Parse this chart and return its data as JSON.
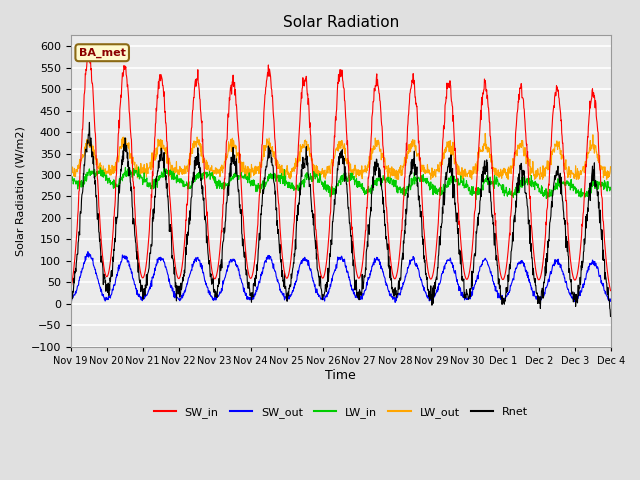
{
  "title": "Solar Radiation",
  "xlabel": "Time",
  "ylabel": "Solar Radiation (W/m2)",
  "annotation_text": "BA_met",
  "annotation_color": "#8B0000",
  "annotation_bg": "#FFFACD",
  "annotation_border": "#8B6914",
  "xlim_start": 0,
  "xlim_end": 360,
  "ylim": [
    -100,
    625
  ],
  "yticks": [
    -100,
    -50,
    0,
    50,
    100,
    150,
    200,
    250,
    300,
    350,
    400,
    450,
    500,
    550,
    600
  ],
  "xtick_labels": [
    "Nov 19",
    "Nov 20",
    "Nov 21",
    "Nov 22",
    "Nov 23",
    "Nov 24",
    "Nov 25",
    "Nov 26",
    "Nov 27",
    "Nov 28",
    "Nov 29",
    "Nov 30",
    "Dec 1",
    "Dec 2",
    "Dec 3",
    "Dec 4"
  ],
  "xtick_positions": [
    0,
    24,
    48,
    72,
    96,
    120,
    144,
    168,
    192,
    216,
    240,
    264,
    288,
    312,
    336,
    360
  ],
  "colors": {
    "SW_in": "#FF0000",
    "SW_out": "#0000FF",
    "LW_in": "#00CC00",
    "LW_out": "#FFA500",
    "Rnet": "#000000"
  },
  "bg_color": "#E0E0E0",
  "plot_bg_color": "#EBEBEB",
  "grid_color": "#FFFFFF",
  "linewidth": 0.8
}
